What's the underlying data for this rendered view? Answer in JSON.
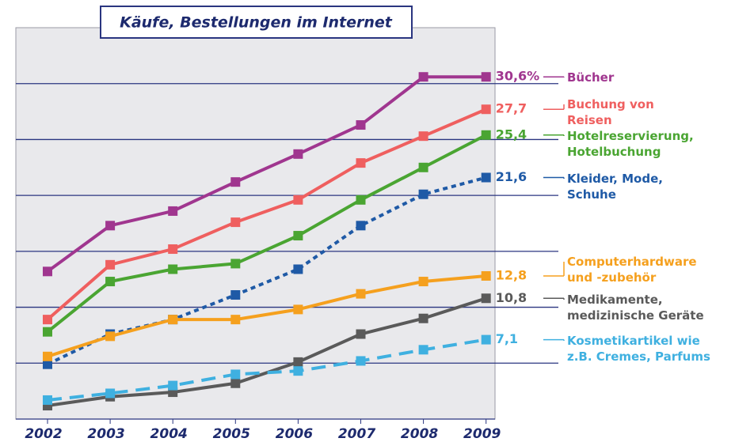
{
  "chart_data": {
    "type": "line",
    "title": "Käufe, Bestellungen im Internet",
    "categories": [
      "2002",
      "2003",
      "2004",
      "2005",
      "2006",
      "2007",
      "2008",
      "2009"
    ],
    "ylim": [
      0,
      35
    ],
    "yticks": [
      5,
      10,
      15,
      20,
      25,
      30
    ],
    "grid": true,
    "series": [
      {
        "name": "Bücher",
        "color": "#a0368f",
        "style": "solid",
        "values": [
          13.2,
          17.3,
          18.6,
          21.2,
          23.7,
          26.3,
          30.6,
          30.6
        ],
        "value_labels": [
          null,
          null,
          null,
          null,
          null,
          null,
          null,
          "30,6%"
        ]
      },
      {
        "name": "Buchung von\nReisen",
        "color": "#ef5f5f",
        "style": "solid",
        "values": [
          8.9,
          13.8,
          15.2,
          17.6,
          19.6,
          22.9,
          25.3,
          27.7
        ],
        "value_labels": [
          null,
          null,
          null,
          null,
          null,
          null,
          null,
          "27,7"
        ]
      },
      {
        "name": "Hotelreservierung,\nHotelbuchung",
        "color": "#4aa532",
        "style": "solid",
        "values": [
          7.8,
          12.3,
          13.4,
          13.9,
          16.4,
          19.6,
          22.5,
          25.4
        ],
        "value_labels": [
          null,
          null,
          null,
          null,
          null,
          null,
          null,
          "25,4"
        ]
      },
      {
        "name": "Kleider, Mode,\nSchuhe",
        "color": "#1f5aa6",
        "style": "dotted",
        "values": [
          4.9,
          7.6,
          8.9,
          11.1,
          13.4,
          17.3,
          20.1,
          21.6
        ],
        "value_labels": [
          null,
          null,
          null,
          null,
          null,
          null,
          null,
          "21,6"
        ]
      },
      {
        "name": "Computerhardware\nund -zubehör",
        "color": "#f5a01e",
        "style": "solid",
        "values": [
          5.6,
          7.4,
          8.9,
          8.9,
          9.8,
          11.2,
          12.3,
          12.8
        ],
        "value_labels": [
          null,
          null,
          null,
          null,
          null,
          null,
          null,
          "12,8"
        ]
      },
      {
        "name": "Medikamente,\nmedizinische Geräte",
        "color": "#5a5a5a",
        "style": "solid",
        "values": [
          1.2,
          2.0,
          2.4,
          3.2,
          5.1,
          7.6,
          9.0,
          10.8
        ],
        "value_labels": [
          null,
          null,
          null,
          null,
          null,
          null,
          null,
          "10,8"
        ]
      },
      {
        "name": "Kosmetikartikel wie\nz.B. Cremes, Parfums",
        "color": "#3fb0e0",
        "style": "dashed",
        "values": [
          1.7,
          2.3,
          3.0,
          4.0,
          4.3,
          5.2,
          6.2,
          7.1
        ],
        "value_labels": [
          null,
          null,
          null,
          null,
          null,
          null,
          null,
          "7,1"
        ]
      }
    ]
  }
}
